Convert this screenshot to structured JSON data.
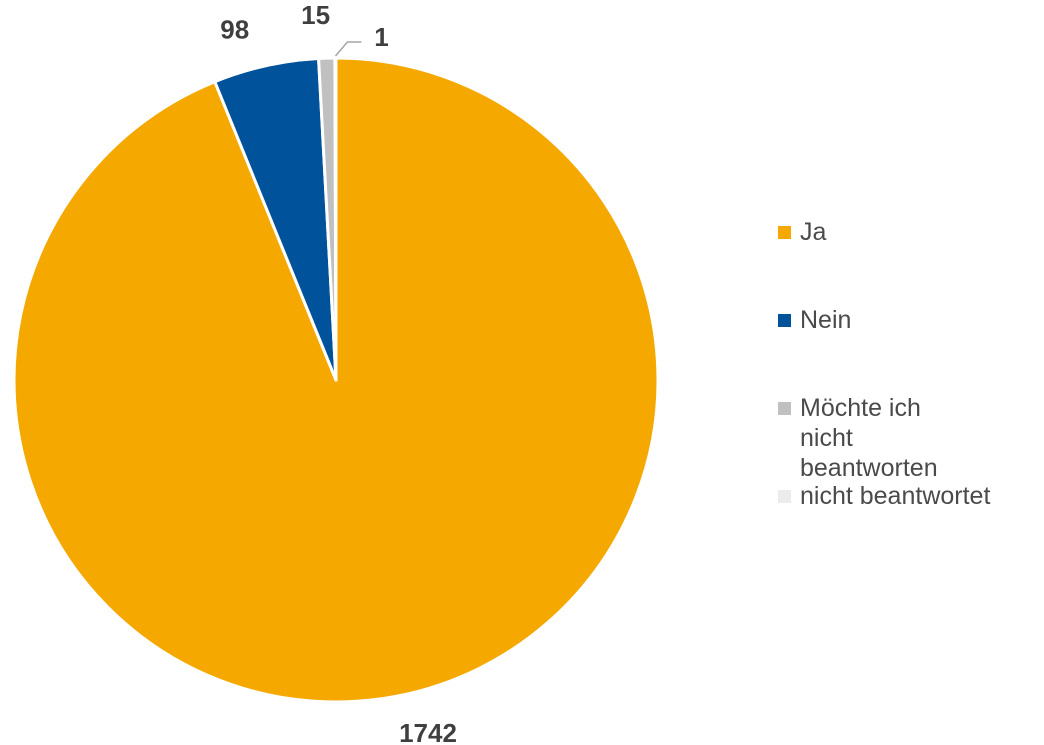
{
  "chart_data": {
    "type": "pie",
    "title": "",
    "start_angle_deg": 0,
    "direction": "clockwise",
    "series": [
      {
        "categories": [
          "Ja",
          "Nein",
          "Möchte ich nicht beantworten",
          "nicht beantwortet"
        ],
        "values": [
          1742,
          98,
          15,
          1
        ],
        "colors": [
          "#f5a800",
          "#00529b",
          "#c0c0c0",
          "#ececec"
        ],
        "data_labels": [
          "1742",
          "98",
          "15",
          "1"
        ]
      }
    ],
    "legend": {
      "position": "right",
      "items": [
        "Ja",
        "Nein",
        "Möchte ich nicht beantworten",
        "nicht beantwortet"
      ]
    }
  }
}
